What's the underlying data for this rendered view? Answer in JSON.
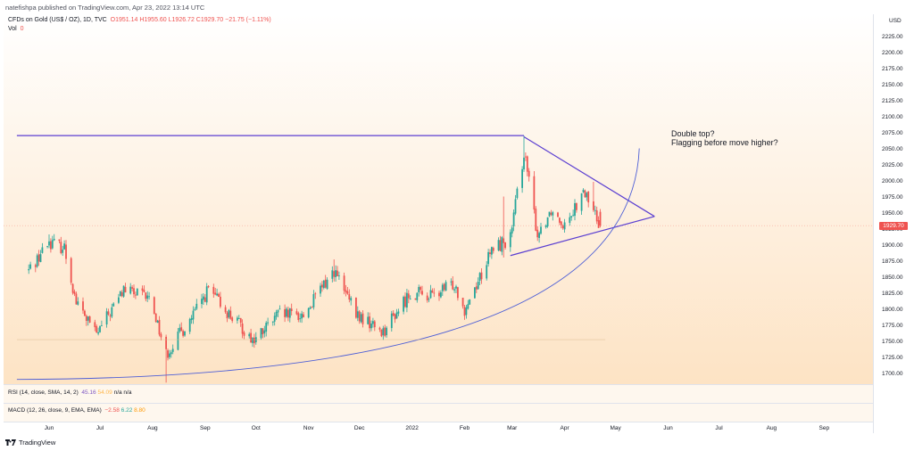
{
  "header": {
    "published": "natefishpa published on TradingView.com, Apr 23, 2022 13:14 UTC"
  },
  "legend": {
    "symbol": "CFDs on Gold (US$ / OZ), 1D, TVC",
    "open": "O1951.14",
    "high": "H1955.60",
    "low": "L1926.72",
    "close": "C1929.70",
    "change": "−21.75 (−1.11%)",
    "vol_label": "Vol",
    "vol_value": "0"
  },
  "indicators": {
    "rsi_label": "RSI (14, close, SMA, 14, 2)",
    "rsi_value": "45.16",
    "rsi_ma": "54.09",
    "rsi_na": "n/a  n/a",
    "macd_label": "MACD (12, 26, close, 9, EMA, EMA)",
    "macd_hist": "−2.58",
    "macd_line": "6.22",
    "macd_signal": "8.80"
  },
  "annotation": {
    "line1": "Double top?",
    "line2": "Flagging before move higher?"
  },
  "axis": {
    "currency": "USD",
    "last_price": "1929.70"
  },
  "footer": {
    "brand": "TradingView"
  },
  "colors": {
    "up": "#26a69a",
    "down": "#ef5350",
    "trendline": "#5b3fd1",
    "curve": "#4e5fd6",
    "bg_top": "#ffffff",
    "bg_bottom": "#fde3c4"
  },
  "chart_data": {
    "type": "candlestick",
    "title": "CFDs on Gold (US$ / OZ), 1D, TVC",
    "ylim": [
      1680,
      2250
    ],
    "y_ticks": [
      1700,
      1725,
      1750,
      1775,
      1800,
      1825,
      1850,
      1875,
      1900,
      1925,
      1950,
      1975,
      2000,
      2025,
      2050,
      2075,
      2100,
      2125,
      2150,
      2175,
      2200,
      2225
    ],
    "x_ticks": [
      "Jun",
      "Jul",
      "Aug",
      "Sep",
      "Oct",
      "Nov",
      "Dec",
      "2022",
      "Feb",
      "Mar",
      "Apr",
      "May",
      "Jun",
      "Jul",
      "Aug",
      "Sep"
    ],
    "anchors": [
      {
        "date": "2021-05-20",
        "price": 1860
      },
      {
        "date": "2021-06-01",
        "price": 1905
      },
      {
        "date": "2021-06-10",
        "price": 1895
      },
      {
        "date": "2021-06-17",
        "price": 1810
      },
      {
        "date": "2021-06-29",
        "price": 1760
      },
      {
        "date": "2021-07-15",
        "price": 1830
      },
      {
        "date": "2021-07-31",
        "price": 1815
      },
      {
        "date": "2021-08-09",
        "price": 1730
      },
      {
        "date": "2021-08-25",
        "price": 1790
      },
      {
        "date": "2021-09-03",
        "price": 1830
      },
      {
        "date": "2021-09-14",
        "price": 1795
      },
      {
        "date": "2021-09-30",
        "price": 1750
      },
      {
        "date": "2021-10-14",
        "price": 1790
      },
      {
        "date": "2021-10-29",
        "price": 1790
      },
      {
        "date": "2021-11-16",
        "price": 1860
      },
      {
        "date": "2021-11-29",
        "price": 1790
      },
      {
        "date": "2021-12-15",
        "price": 1765
      },
      {
        "date": "2021-12-31",
        "price": 1825
      },
      {
        "date": "2022-01-14",
        "price": 1820
      },
      {
        "date": "2022-01-26",
        "price": 1840
      },
      {
        "date": "2022-02-01",
        "price": 1800
      },
      {
        "date": "2022-02-18",
        "price": 1895
      },
      {
        "date": "2022-02-28",
        "price": 1910
      },
      {
        "date": "2022-03-08",
        "price": 2045
      },
      {
        "date": "2022-03-16",
        "price": 1915
      },
      {
        "date": "2022-03-24",
        "price": 1955
      },
      {
        "date": "2022-03-31",
        "price": 1935
      },
      {
        "date": "2022-04-13",
        "price": 1980
      },
      {
        "date": "2022-04-22",
        "price": 1930
      }
    ],
    "events": [
      {
        "date": "2021-08-09",
        "low": 1685
      },
      {
        "date": "2021-06-01",
        "high": 1916
      },
      {
        "date": "2021-11-16",
        "high": 1877
      },
      {
        "date": "2022-02-24",
        "high": 1975,
        "low": 1880
      },
      {
        "date": "2022-03-08",
        "high": 2070
      },
      {
        "date": "2022-04-18",
        "high": 1998
      }
    ],
    "last_candle": {
      "date": "2022-04-22",
      "open": 1951.14,
      "high": 1955.6,
      "low": 1926.72,
      "close": 1929.7
    },
    "drawings": [
      {
        "type": "horizontal",
        "price": 2070,
        "from": "2021-05-13",
        "to": "2022-03-08"
      },
      {
        "type": "line",
        "from": {
          "date": "2022-03-08",
          "price": 2068
        },
        "to": {
          "date": "2022-05-24",
          "price": 1944
        }
      },
      {
        "type": "line",
        "from": {
          "date": "2022-02-28",
          "price": 1883
        },
        "to": {
          "date": "2022-05-24",
          "price": 1944
        }
      },
      {
        "type": "arc",
        "from": {
          "date": "2021-05-13",
          "price": 1690
        },
        "to": {
          "date": "2022-05-15",
          "price": 2050
        }
      },
      {
        "type": "horizontal-faint",
        "price": 1752,
        "from": "2021-05-13",
        "to": "2022-04-25"
      }
    ]
  }
}
